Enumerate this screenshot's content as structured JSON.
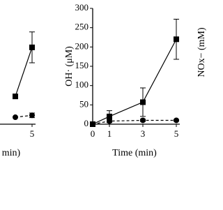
{
  "chart_data": [
    {
      "type": "line",
      "xlabel": "min)",
      "xlim": [
        0,
        5
      ],
      "xticks": [
        5
      ],
      "ylim": [
        0,
        300
      ],
      "series": [
        {
          "color": "#000000",
          "marker": "square",
          "dashed": false,
          "x": [
            4,
            5
          ],
          "values": [
            72,
            199
          ],
          "errors": [
            0,
            40
          ]
        },
        {
          "color": "#000000",
          "marker": "circle",
          "dashed": true,
          "x": [
            4,
            5
          ],
          "values": [
            18,
            23
          ],
          "errors": [
            0,
            6
          ]
        }
      ]
    },
    {
      "type": "line",
      "xlabel": "Time (min)",
      "ylabel": "OH· (μM)",
      "xlim": [
        0,
        5
      ],
      "xticks": [
        0,
        1,
        3,
        5
      ],
      "ylim": [
        0,
        300
      ],
      "yticks": [
        0,
        50,
        100,
        150,
        200,
        250,
        300
      ],
      "series": [
        {
          "color": "#000000",
          "marker": "square",
          "dashed": false,
          "x": [
            0,
            1,
            3,
            5
          ],
          "values": [
            0,
            20,
            57,
            220
          ],
          "errors": [
            0,
            15,
            37,
            52
          ]
        },
        {
          "color": "#000000",
          "marker": "circle",
          "dashed": true,
          "x": [
            0,
            1,
            3,
            5
          ],
          "values": [
            0,
            8,
            10,
            10
          ],
          "errors": [
            0,
            4,
            3,
            2
          ]
        }
      ]
    },
    {
      "type": "label",
      "ylabel": "NOx− (mM)"
    }
  ]
}
